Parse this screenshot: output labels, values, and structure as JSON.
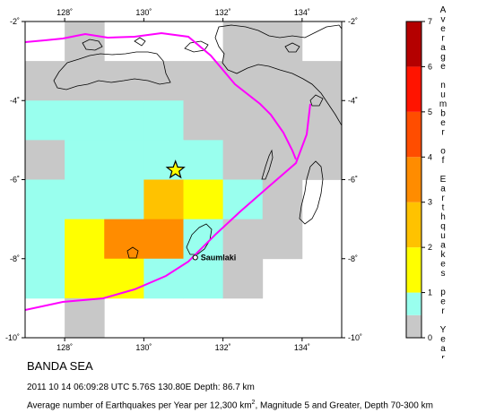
{
  "region_name": "BANDA SEA",
  "event_line": "2011 10 14 06:09:28 UTC 5.76S 130.80E Depth: 86.7 km",
  "caption": {
    "pre": "Average number of Earthquakes per Year per 12,300 km",
    "sup": "2",
    "post": ", Magnitude 5 and Greater, Depth 70-300 km"
  },
  "map": {
    "lon_range": [
      127,
      135
    ],
    "lat_range": [
      -10,
      -2
    ],
    "lon_ticks": [
      128,
      130,
      132,
      134
    ],
    "lat_ticks": [
      -2,
      -4,
      -6,
      -8,
      -10
    ],
    "lon_tick_labels": [
      "128˚",
      "130˚",
      "132˚",
      "134˚"
    ],
    "lat_tick_labels": [
      "-2˚",
      "-4˚",
      "-6˚",
      "-8˚",
      "-10˚"
    ],
    "place_label": "Saumlaki",
    "place": {
      "lon": 131.3,
      "lat": -7.97
    },
    "epicenter": {
      "lon": 130.8,
      "lat": -5.76
    },
    "plate_boundary_color": "#ff00ff"
  },
  "grid": {
    "cell_deg": 1,
    "cells": [
      {
        "lon": 128,
        "lat": -2,
        "v": 0.3
      },
      {
        "lon": 132,
        "lat": -2,
        "v": 0.3
      },
      {
        "lon": 133,
        "lat": -2,
        "v": 0.3
      },
      {
        "lon": 127,
        "lat": -3,
        "v": 0.3
      },
      {
        "lon": 128,
        "lat": -3,
        "v": 0.3
      },
      {
        "lon": 129,
        "lat": -3,
        "v": 0.3
      },
      {
        "lon": 130,
        "lat": -3,
        "v": 0.3
      },
      {
        "lon": 131,
        "lat": -3,
        "v": 0.3
      },
      {
        "lon": 132,
        "lat": -3,
        "v": 0.3
      },
      {
        "lon": 133,
        "lat": -3,
        "v": 0.3
      },
      {
        "lon": 134,
        "lat": -3,
        "v": 0.3
      },
      {
        "lon": 127,
        "lat": -4,
        "v": 0.6
      },
      {
        "lon": 128,
        "lat": -4,
        "v": 0.8
      },
      {
        "lon": 129,
        "lat": -4,
        "v": 0.8
      },
      {
        "lon": 130,
        "lat": -4,
        "v": 0.6
      },
      {
        "lon": 131,
        "lat": -4,
        "v": 0.3
      },
      {
        "lon": 132,
        "lat": -4,
        "v": 0.3
      },
      {
        "lon": 133,
        "lat": -4,
        "v": 0.3
      },
      {
        "lon": 134,
        "lat": -4,
        "v": 0.3
      },
      {
        "lon": 127,
        "lat": -5,
        "v": 0.3
      },
      {
        "lon": 128,
        "lat": -5,
        "v": 0.5
      },
      {
        "lon": 129,
        "lat": -5,
        "v": 0.8
      },
      {
        "lon": 130,
        "lat": -5,
        "v": 0.8
      },
      {
        "lon": 131,
        "lat": -5,
        "v": 0.8
      },
      {
        "lon": 132,
        "lat": -5,
        "v": 0.3
      },
      {
        "lon": 133,
        "lat": -5,
        "v": 0.3
      },
      {
        "lon": 134,
        "lat": -5,
        "v": 0.3
      },
      {
        "lon": 127,
        "lat": -6,
        "v": 0.5
      },
      {
        "lon": 128,
        "lat": -6,
        "v": 0.5
      },
      {
        "lon": 129,
        "lat": -6,
        "v": 0.95
      },
      {
        "lon": 130,
        "lat": -6,
        "v": 2.5
      },
      {
        "lon": 131,
        "lat": -6,
        "v": 1.5
      },
      {
        "lon": 132,
        "lat": -6,
        "v": 0.5
      },
      {
        "lon": 133,
        "lat": -6,
        "v": 0.3
      },
      {
        "lon": 127,
        "lat": -7,
        "v": 0.8
      },
      {
        "lon": 128,
        "lat": -7,
        "v": 1.8
      },
      {
        "lon": 129,
        "lat": -7,
        "v": 3.2
      },
      {
        "lon": 130,
        "lat": -7,
        "v": 3.2
      },
      {
        "lon": 131,
        "lat": -7,
        "v": 0.8
      },
      {
        "lon": 132,
        "lat": -7,
        "v": 0.3
      },
      {
        "lon": 133,
        "lat": -7,
        "v": 0.3
      },
      {
        "lon": 127,
        "lat": -8,
        "v": 0.8
      },
      {
        "lon": 128,
        "lat": -8,
        "v": 1.6
      },
      {
        "lon": 129,
        "lat": -8,
        "v": 1.4
      },
      {
        "lon": 130,
        "lat": -8,
        "v": 0.8
      },
      {
        "lon": 131,
        "lat": -8,
        "v": 0.8
      },
      {
        "lon": 132,
        "lat": -8,
        "v": 0.3
      },
      {
        "lon": 128,
        "lat": -9,
        "v": 0.3
      }
    ]
  },
  "colorbar": {
    "title": "Average number of Earthquakes per Year",
    "tick_labels": [
      "0",
      "1",
      "2",
      "3",
      "4",
      "5",
      "6",
      "7"
    ],
    "stops": [
      {
        "from": 0,
        "to": 0.5,
        "color": "#c8c8c8"
      },
      {
        "from": 0.5,
        "to": 1,
        "color": "#99ffee"
      },
      {
        "from": 1,
        "to": 2,
        "color": "#ffff00"
      },
      {
        "from": 2,
        "to": 3,
        "color": "#ffc200"
      },
      {
        "from": 3,
        "to": 4,
        "color": "#ff8c00"
      },
      {
        "from": 4,
        "to": 5,
        "color": "#ff4d00"
      },
      {
        "from": 5,
        "to": 6,
        "color": "#ff1400"
      },
      {
        "from": 6,
        "to": 7,
        "color": "#b40000"
      }
    ]
  }
}
